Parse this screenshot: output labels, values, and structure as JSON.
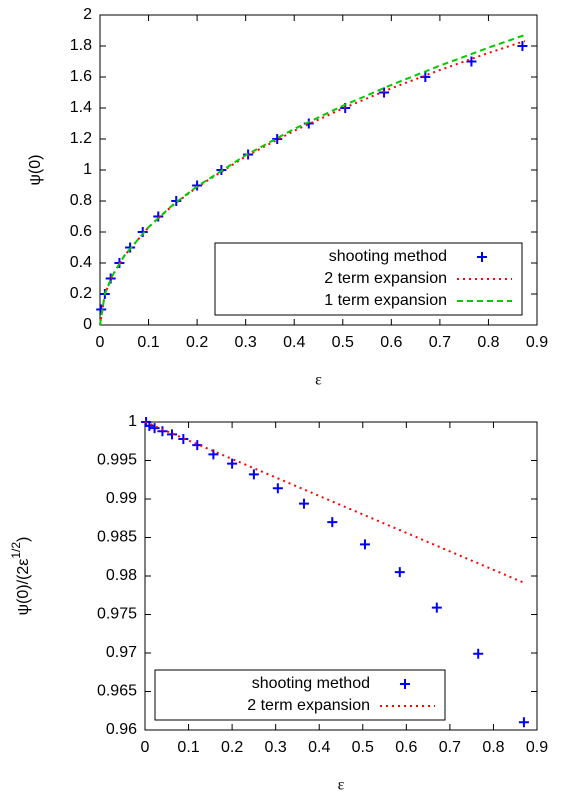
{
  "chart_data": [
    {
      "type": "line",
      "xlabel": "ε",
      "ylabel": "ψ(0)",
      "xlim": [
        0,
        0.9
      ],
      "ylim": [
        0,
        2
      ],
      "xticks": [
        0,
        0.1,
        0.2,
        0.3,
        0.4,
        0.5,
        0.6,
        0.7,
        0.8,
        0.9
      ],
      "yticks": [
        0,
        0.2,
        0.4,
        0.6,
        0.8,
        1,
        1.2,
        1.4,
        1.6,
        1.8,
        2
      ],
      "legend": "lower right",
      "series": [
        {
          "name": "shooting method",
          "color": "#0000ff",
          "style": "points",
          "x": [
            0.0025,
            0.01,
            0.022,
            0.04,
            0.062,
            0.088,
            0.12,
            0.157,
            0.2,
            0.25,
            0.305,
            0.365,
            0.43,
            0.505,
            0.585,
            0.67,
            0.765,
            0.87
          ],
          "values": [
            0.1,
            0.2,
            0.3,
            0.4,
            0.5,
            0.6,
            0.7,
            0.8,
            0.9,
            1.0,
            1.1,
            1.2,
            1.3,
            1.4,
            1.5,
            1.6,
            1.7,
            1.8
          ]
        },
        {
          "name": "2 term expansion",
          "color": "#ff0000",
          "style": "dotted",
          "x": [
            0,
            0.01,
            0.025,
            0.05,
            0.1,
            0.15,
            0.2,
            0.3,
            0.4,
            0.5,
            0.6,
            0.7,
            0.8,
            0.875
          ],
          "values": [
            0,
            0.2,
            0.316,
            0.446,
            0.631,
            0.772,
            0.89,
            1.087,
            1.253,
            1.397,
            1.527,
            1.645,
            1.755,
            1.832
          ]
        },
        {
          "name": "1 term expansion",
          "color": "#00cc00",
          "style": "dashed",
          "x": [
            0,
            0.01,
            0.025,
            0.05,
            0.1,
            0.15,
            0.2,
            0.3,
            0.4,
            0.5,
            0.6,
            0.7,
            0.8,
            0.875
          ],
          "values": [
            0,
            0.2,
            0.316,
            0.447,
            0.632,
            0.775,
            0.894,
            1.095,
            1.265,
            1.414,
            1.549,
            1.673,
            1.789,
            1.871
          ]
        }
      ]
    },
    {
      "type": "line",
      "xlabel": "ε",
      "ylabel": "ψ(0)/(2ε",
      "ylabel_sup": "1/2",
      "ylabel_end": ")",
      "xlim": [
        0,
        0.9
      ],
      "ylim": [
        0.96,
        1
      ],
      "xticks": [
        0,
        0.1,
        0.2,
        0.3,
        0.4,
        0.5,
        0.6,
        0.7,
        0.8,
        0.9
      ],
      "yticks": [
        0.96,
        0.965,
        0.97,
        0.975,
        0.98,
        0.985,
        0.99,
        0.995,
        1
      ],
      "legend": "lower left",
      "series": [
        {
          "name": "shooting method",
          "color": "#0000ff",
          "style": "points",
          "x": [
            0.0025,
            0.01,
            0.022,
            0.04,
            0.062,
            0.088,
            0.12,
            0.157,
            0.2,
            0.25,
            0.305,
            0.365,
            0.43,
            0.505,
            0.585,
            0.67,
            0.765,
            0.87
          ],
          "values": [
            1.0,
            0.9995,
            0.9992,
            0.9988,
            0.9984,
            0.9978,
            0.997,
            0.9958,
            0.9946,
            0.9932,
            0.9914,
            0.9894,
            0.987,
            0.9841,
            0.9805,
            0.9759,
            0.9699,
            0.961
          ]
        },
        {
          "name": "2 term expansion",
          "color": "#ff0000",
          "style": "dotted",
          "x": [
            0,
            0.01,
            0.025,
            0.05,
            0.1,
            0.15,
            0.2,
            0.3,
            0.4,
            0.5,
            0.6,
            0.7,
            0.8,
            0.875
          ],
          "values": [
            1,
            0.9998,
            0.9994,
            0.9988,
            0.9976,
            0.9964,
            0.9952,
            0.9928,
            0.9904,
            0.988,
            0.9856,
            0.9832,
            0.9808,
            0.979
          ]
        }
      ]
    }
  ]
}
